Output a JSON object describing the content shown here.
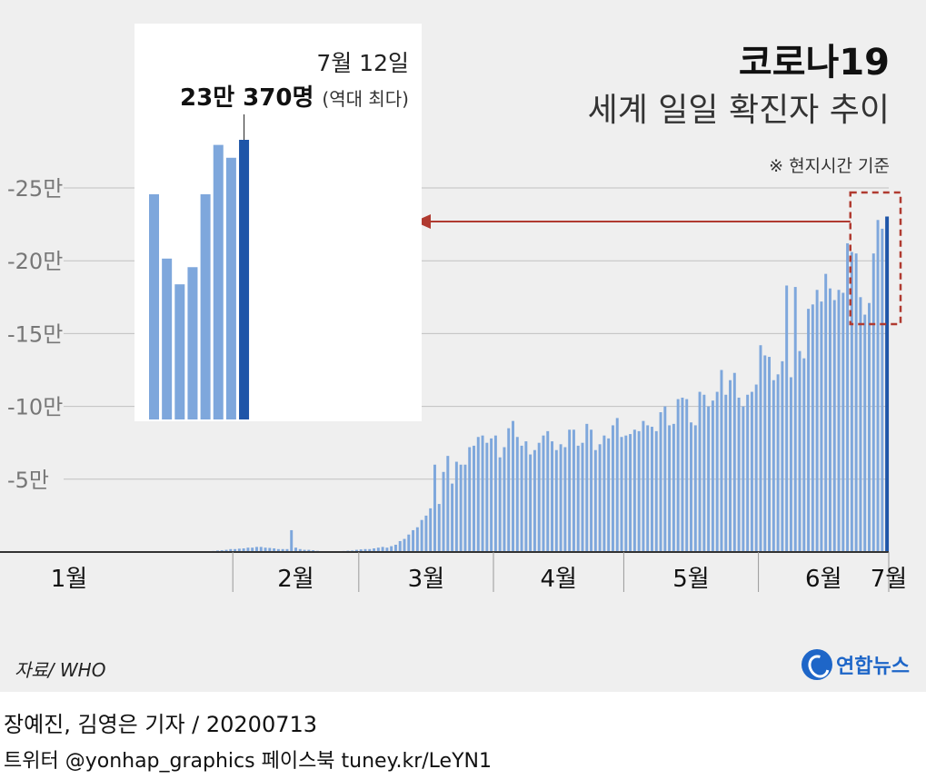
{
  "header": {
    "title": "코로나19",
    "subtitle": "세계 일일 확진자 추이",
    "note": "※ 현지시간 기준"
  },
  "footer": {
    "source": "자료/ WHO",
    "logo": "연합뉴스",
    "byline": "장예진, 김영은 기자 / 20200713",
    "social": "트위터 @yonhap_graphics  페이스북 tuney.kr/LeYN1"
  },
  "colors": {
    "bar": "#7ea7dc",
    "bar_highlight": "#1e55a8",
    "arrow": "#b03a30",
    "grid": "#c0c0c0",
    "axis": "#333333"
  },
  "chart_data": {
    "type": "bar",
    "title": "코로나19 세계 일일 확진자 추이",
    "ylabel": "",
    "xlabel": "",
    "ylim": [
      0,
      250000
    ],
    "yticks": [
      {
        "value": 50000,
        "label": "-5만"
      },
      {
        "value": 100000,
        "label": "-10만"
      },
      {
        "value": 150000,
        "label": "-15만"
      },
      {
        "value": 200000,
        "label": "-20만"
      },
      {
        "value": 250000,
        "label": "-25만"
      }
    ],
    "months": [
      "1월",
      "2월",
      "3월",
      "4월",
      "5월",
      "6월",
      "7월"
    ],
    "month_start_index": [
      0,
      31,
      60,
      91,
      121,
      152,
      182
    ],
    "series": [
      {
        "name": "일일 확진자",
        "values": [
          0,
          0,
          0,
          0,
          0,
          0,
          0,
          0,
          0,
          0,
          0,
          0,
          0,
          0,
          0,
          0,
          0,
          0,
          0,
          0,
          100,
          100,
          150,
          250,
          400,
          500,
          700,
          1000,
          1200,
          1500,
          2000,
          2000,
          2300,
          2500,
          3000,
          3000,
          3500,
          3500,
          3000,
          2800,
          2500,
          2000,
          2000,
          2000,
          15000,
          3000,
          2000,
          1500,
          1500,
          1200,
          800,
          600,
          600,
          600,
          500,
          600,
          700,
          900,
          1000,
          1500,
          1800,
          2000,
          2000,
          2500,
          3000,
          3500,
          3000,
          4000,
          5000,
          7500,
          9000,
          12000,
          15000,
          17000,
          22000,
          25000,
          30000,
          60000,
          33000,
          55000,
          66000,
          47000,
          62000,
          60000,
          60000,
          72000,
          73000,
          79000,
          80000,
          75000,
          78000,
          80000,
          65000,
          72000,
          85000,
          90000,
          79000,
          73000,
          76000,
          67000,
          70000,
          75000,
          80000,
          83000,
          76000,
          70000,
          74000,
          72000,
          84000,
          84000,
          73000,
          75000,
          88000,
          84000,
          70000,
          74000,
          80000,
          78000,
          87000,
          92000,
          79000,
          80000,
          81000,
          84000,
          83000,
          90000,
          87000,
          86000,
          83000,
          96000,
          100000,
          87000,
          88000,
          105000,
          106000,
          105000,
          89000,
          87000,
          110000,
          108000,
          100000,
          104000,
          110000,
          125000,
          108000,
          118000,
          123000,
          106000,
          100000,
          108000,
          110000,
          115000,
          142000,
          135000,
          134000,
          118000,
          122000,
          131000,
          183000,
          120000,
          182000,
          138000,
          133000,
          167000,
          170000,
          180000,
          172000,
          191000,
          181000,
          173000,
          180000,
          178000,
          212000,
          206000,
          205000,
          175000,
          163000,
          171000,
          205000,
          228000,
          222000,
          230370
        ]
      }
    ],
    "inset": {
      "date_label": "7월 12일",
      "peak_label": "23만 370명",
      "peak_note": "(역대 최다)",
      "start_index": 174,
      "end_index": 192,
      "ylim": [
        100000,
        230370
      ]
    }
  }
}
